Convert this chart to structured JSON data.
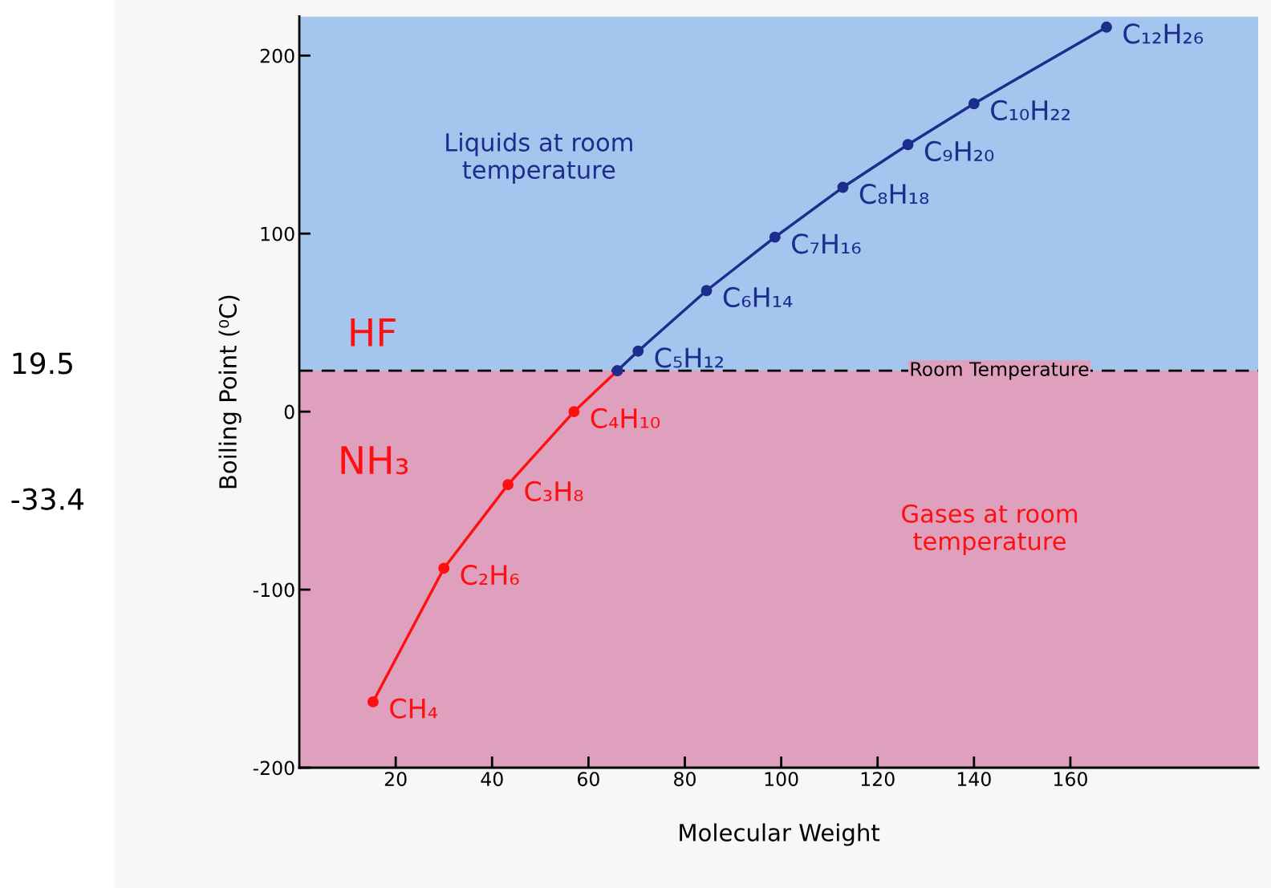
{
  "chart_data": {
    "type": "line",
    "xlabel": "Molecular Weight",
    "ylabel": "Boiling Point (⁰C)",
    "xlim": [
      0,
      199
    ],
    "ylim": [
      -200,
      222
    ],
    "xticks": [
      20,
      40,
      60,
      80,
      100,
      120,
      140,
      160
    ],
    "yticks": [
      -200,
      -100,
      0,
      100,
      200
    ],
    "grid": false,
    "legend": false,
    "marker": "circle",
    "line_style": "solid",
    "series": [
      {
        "color": "#ff1010",
        "x": [
          15.3,
          30,
          43.3,
          57,
          66
        ],
        "values": [
          -163,
          -88,
          -41,
          0,
          23
        ],
        "value_labels": [
          "CH₄",
          "C₂H₆",
          "C₃H₈",
          "C₄H₁₀",
          null
        ]
      },
      {
        "color": "#1c2d8c",
        "x": [
          66,
          70.3,
          84.5,
          98.7,
          112.8,
          126.3,
          140,
          167.5
        ],
        "values": [
          23,
          34,
          68,
          98,
          126,
          150,
          173,
          216
        ],
        "value_labels": [
          null,
          "C₅H₁₂",
          "C₆H₁₄",
          "C₇H₁₆",
          "C₈H₁₈",
          "C₉H₂₀",
          "C₁₀H₂₂",
          "C₁₂H₂₆"
        ]
      }
    ],
    "bands": [
      {
        "axis": "y",
        "from": -200,
        "to": 23,
        "label": "Gases at room\ntemperature",
        "color": "#dfa0be"
      },
      {
        "axis": "y",
        "from": 23,
        "to": 222,
        "label": "Liquids at room\ntemperature",
        "color": "#a3c5ee"
      }
    ],
    "ref_lines": [
      {
        "axis": "y",
        "value": 23,
        "label": "Room Temperature",
        "color": "#000000",
        "line_style": "dashed"
      }
    ],
    "annotations": [
      "HF",
      "NH₃",
      "19.5",
      "-33.4"
    ]
  }
}
